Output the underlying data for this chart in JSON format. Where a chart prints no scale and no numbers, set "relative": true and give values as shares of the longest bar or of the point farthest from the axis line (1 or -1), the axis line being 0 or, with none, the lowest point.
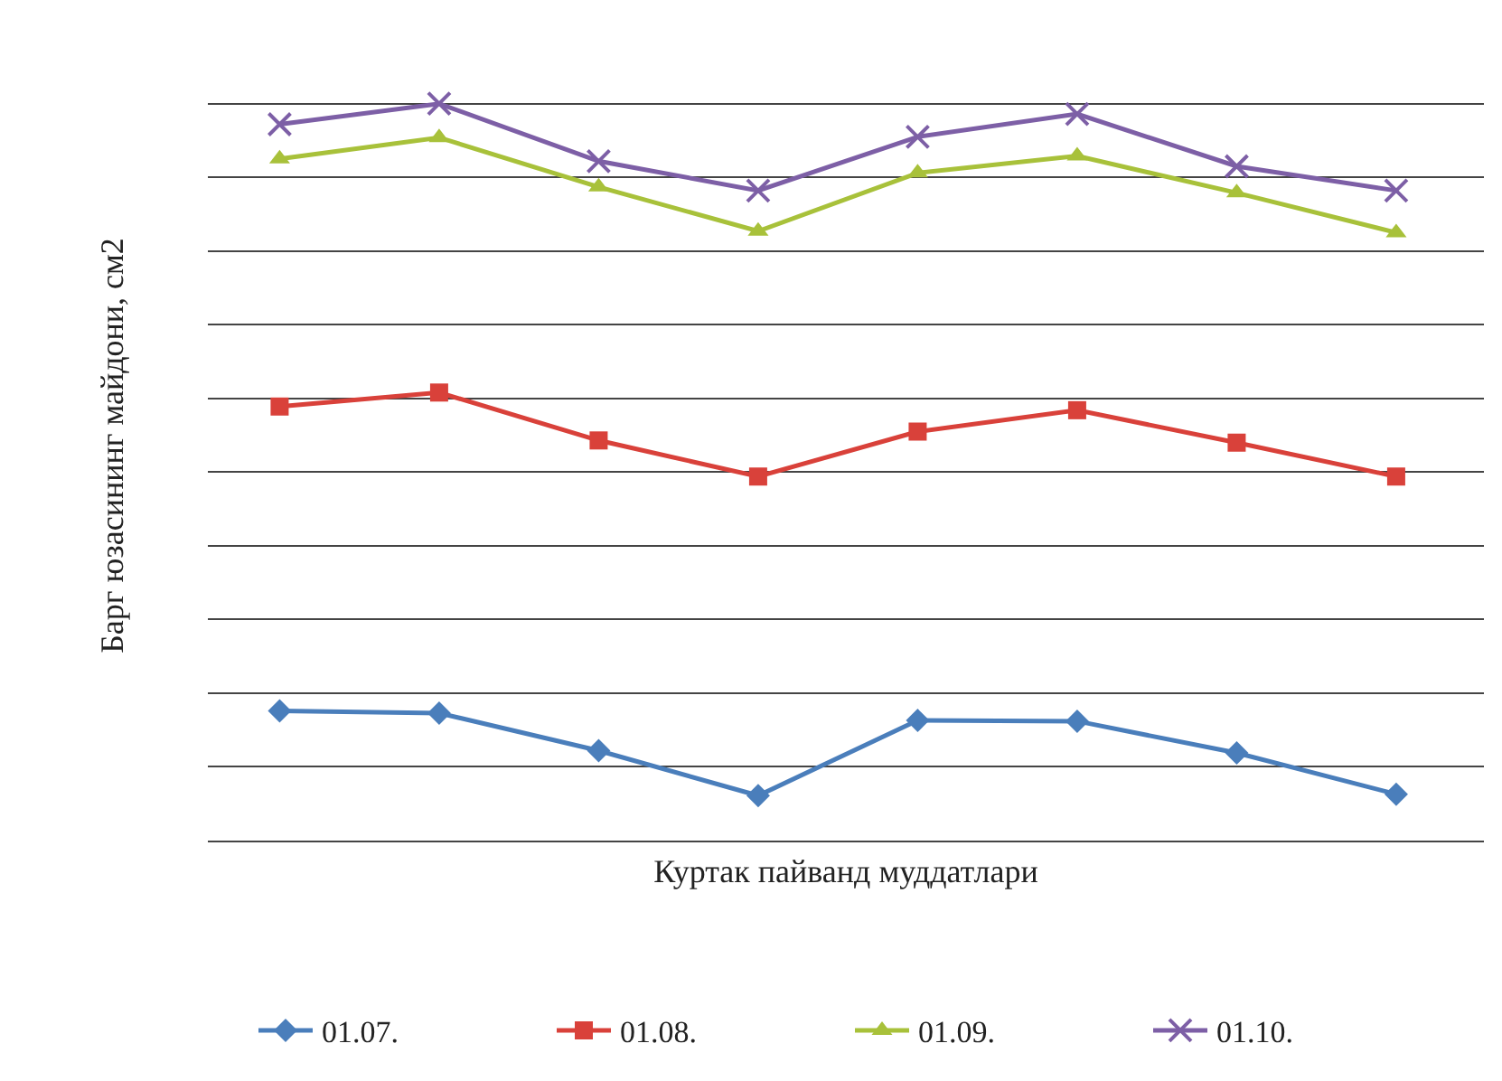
{
  "chart_data": {
    "type": "line",
    "relative": true,
    "xlabel": "Куртак пайванд муддатлари",
    "ylabel": "Барг юзасининг майдони, см2",
    "categories": [
      null,
      null,
      null,
      null,
      null,
      null,
      null,
      null
    ],
    "series": [
      {
        "name": "01.07.",
        "color": "#4a7ebb",
        "marker": "diamond",
        "values": [
          0.176,
          0.173,
          0.122,
          0.061,
          0.163,
          0.162,
          0.119,
          0.063
        ]
      },
      {
        "name": "01.08.",
        "color": "#d9413a",
        "marker": "square",
        "values": [
          0.589,
          0.608,
          0.543,
          0.494,
          0.555,
          0.584,
          0.54,
          0.494
        ]
      },
      {
        "name": "01.09.",
        "color": "#a8c13a",
        "marker": "triangle",
        "values": [
          0.925,
          0.954,
          0.887,
          0.827,
          0.906,
          0.929,
          0.879,
          0.825
        ]
      },
      {
        "name": "01.10.",
        "color": "#7d5fa6",
        "marker": "cross",
        "values": [
          0.972,
          1,
          0.922,
          0.882,
          0.955,
          0.986,
          0.915,
          0.882
        ]
      }
    ],
    "grid": "y",
    "legend": "bottom",
    "line_style": "solid"
  }
}
